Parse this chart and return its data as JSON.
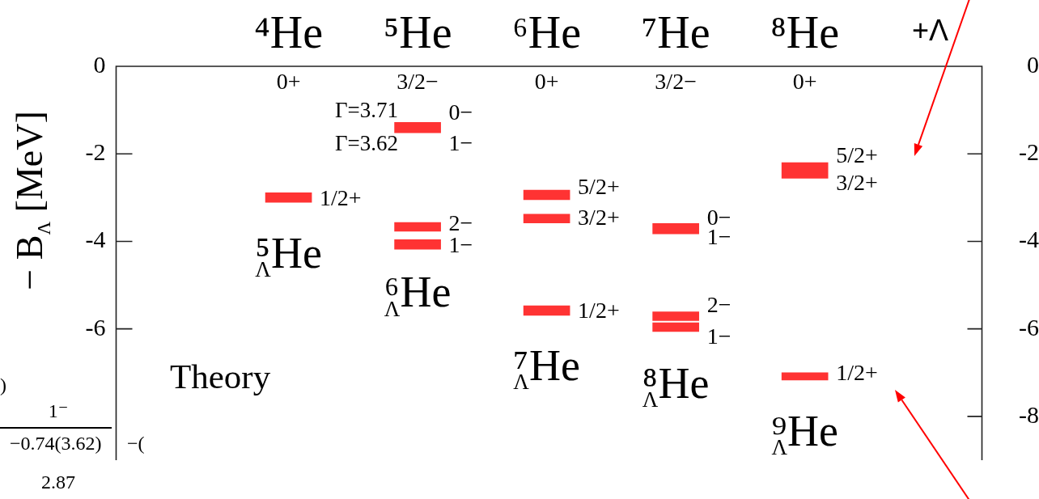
{
  "chart_data": {
    "type": "bar",
    "categories": [
      "⁴He",
      "⁵He",
      "⁶He",
      "⁷He",
      "⁸He"
    ],
    "ylabel": "− B$_{Λ}$ [MeV]",
    "ylim": [
      -9,
      0
    ],
    "yticks": [
      0,
      -2,
      -4,
      -6
    ],
    "y2lim": [
      -9,
      0
    ],
    "y2ticks": [
      0,
      -2,
      -4,
      -6,
      -8
    ],
    "series": [
      {
        "color": "#ff3333",
        "base": [
          -3.11,
          -1.52,
          -3.05,
          -3.83,
          -2.56
        ],
        "values": [
          0.22,
          0.24,
          0.22,
          0.24,
          0.36
        ]
      },
      {
        "color": "#ff3333",
        "base": [
          null,
          -3.77,
          -3.58,
          -5.81,
          -7.17
        ],
        "values": [
          null,
          0.2,
          0.2,
          0.2,
          0.17
        ]
      },
      {
        "color": "#ff3333",
        "base": [
          null,
          -4.18,
          -5.69,
          -6.06,
          null
        ],
        "values": [
          null,
          0.22,
          0.22,
          0.2,
          null
        ]
      }
    ],
    "annotations": [
      "0+",
      "3/2−",
      "0+",
      "3/2−",
      "0+",
      "1/2+",
      "Γ=3.71",
      "Γ=3.62",
      "0−",
      "1−",
      "2−",
      "1−",
      "5/2+",
      "3/2+",
      "1/2+",
      "0−",
      "1−",
      "2−",
      "1−",
      "5/2+",
      "3/2+",
      "1/2+",
      "⁵$_{Λ}$He",
      "⁶$_{Λ}$He",
      "⁷$_{Λ}$He",
      "⁸$_{Λ}$He",
      "⁹$_{Λ}$He",
      "Theory",
      "+Λ",
      ")",
      "1⁻",
      "−0.74(3.62)",
      "−(",
      "2.87"
    ]
  }
}
